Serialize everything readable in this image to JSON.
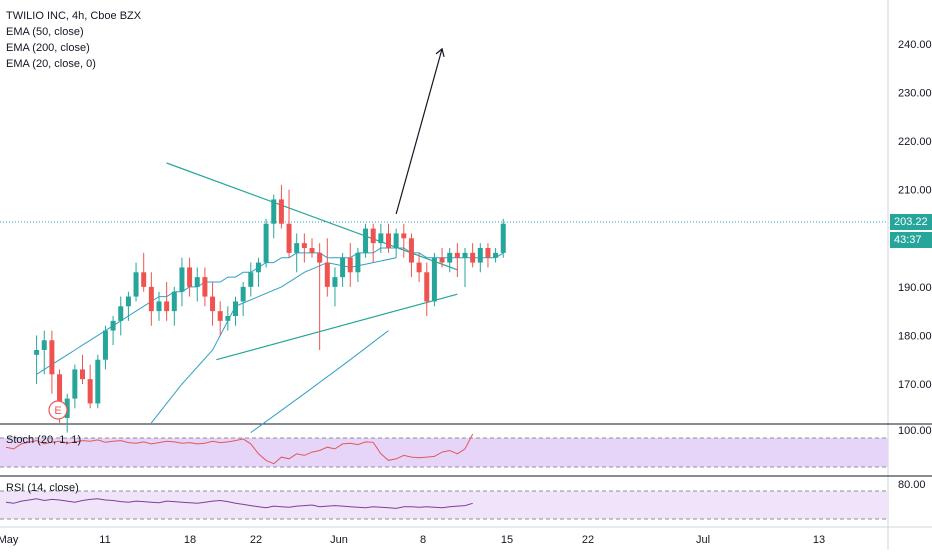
{
  "symbol_title": "TWILIO INC, 4h, Cboe BZX",
  "indicators": {
    "ema50": "EMA (50, close)",
    "ema200": "EMA (200, close)",
    "ema20": "EMA (20, close, 0)"
  },
  "earnings_marker": "E",
  "stoch_label": "Stoch (20, 1, 1)",
  "rsi_label": "RSI (14, close)",
  "price_axis": {
    "ticks": [
      "240.00",
      "230.00",
      "220.00",
      "210.00",
      "190.00",
      "180.00",
      "170.00"
    ],
    "tick_values": [
      240,
      230,
      220,
      210,
      190,
      180,
      170
    ]
  },
  "last_price": "203.22",
  "countdown": "43:37",
  "stoch_axis_tick": "100.00",
  "rsi_axis_tick": "80.00",
  "time_axis": [
    "May",
    "11",
    "18",
    "22",
    "Jun",
    "8",
    "15",
    "22",
    "Jul",
    "13"
  ],
  "colors": {
    "up": "#26a69a",
    "down": "#ef5350",
    "ema": "#2ea0c8",
    "trendline": "#26a69a",
    "stoch": "#e05a5a",
    "rsi": "#7e3f98",
    "band": "#e6d5f8",
    "price_line": "#2ea0c8"
  },
  "chart_data": {
    "type": "candlestick",
    "title": "TWILIO INC, 4h, Cboe BZX",
    "ylim": [
      160,
      250
    ],
    "candles": [
      [
        176,
        180,
        170,
        177
      ],
      [
        177,
        181,
        172,
        179
      ],
      [
        179,
        181,
        168,
        172
      ],
      [
        172,
        173,
        162,
        163
      ],
      [
        163,
        168,
        160,
        167
      ],
      [
        167,
        174,
        165,
        173
      ],
      [
        173,
        176,
        170,
        171
      ],
      [
        171,
        174,
        165,
        166
      ],
      [
        166,
        176,
        165,
        175
      ],
      [
        175,
        182,
        173,
        181
      ],
      [
        181,
        184,
        178,
        183
      ],
      [
        183,
        188,
        180,
        186
      ],
      [
        186,
        189,
        183,
        188
      ],
      [
        188,
        195,
        187,
        193
      ],
      [
        193,
        197,
        189,
        190
      ],
      [
        190,
        193,
        182,
        185
      ],
      [
        185,
        189,
        183,
        187
      ],
      [
        187,
        191,
        183,
        185
      ],
      [
        185,
        190,
        182,
        189
      ],
      [
        189,
        196,
        186,
        194
      ],
      [
        194,
        196,
        188,
        190
      ],
      [
        190,
        194,
        187,
        192
      ],
      [
        192,
        194,
        186,
        188
      ],
      [
        188,
        191,
        182,
        185
      ],
      [
        185,
        187,
        180,
        183
      ],
      [
        183,
        186,
        181,
        184
      ],
      [
        184,
        188,
        182,
        187
      ],
      [
        187,
        191,
        184,
        190
      ],
      [
        190,
        195,
        188,
        193
      ],
      [
        193,
        196,
        190,
        195
      ],
      [
        195,
        204,
        194,
        203
      ],
      [
        203,
        209,
        200,
        208
      ],
      [
        208,
        211,
        202,
        203
      ],
      [
        203,
        210,
        196,
        197
      ],
      [
        197,
        201,
        193,
        199
      ],
      [
        199,
        201,
        195,
        198
      ],
      [
        198,
        200,
        196,
        197
      ],
      [
        197,
        199,
        177,
        195
      ],
      [
        195,
        200,
        188,
        190
      ],
      [
        190,
        194,
        186,
        192
      ],
      [
        192,
        197,
        190,
        196
      ],
      [
        196,
        199,
        190,
        193
      ],
      [
        193,
        198,
        191,
        197
      ],
      [
        197,
        203,
        196,
        202
      ],
      [
        202,
        203,
        195,
        199
      ],
      [
        199,
        203,
        197,
        201
      ],
      [
        201,
        203,
        197,
        198
      ],
      [
        198,
        202,
        196,
        201
      ],
      [
        201,
        203,
        196,
        200
      ],
      [
        200,
        201,
        192,
        195
      ],
      [
        195,
        197,
        191,
        193
      ],
      [
        193,
        195,
        184,
        187
      ],
      [
        187,
        197,
        186,
        196
      ],
      [
        196,
        198,
        194,
        195
      ],
      [
        195,
        198,
        193,
        197
      ],
      [
        197,
        199,
        192,
        196
      ],
      [
        196,
        198,
        190,
        197
      ],
      [
        197,
        199,
        194,
        195
      ],
      [
        195,
        199,
        193,
        198
      ],
      [
        198,
        199,
        194,
        196
      ],
      [
        196,
        198,
        195,
        197
      ],
      [
        197,
        204,
        196,
        203
      ]
    ],
    "trendlines": [
      {
        "from": [
          17,
          215.5
        ],
        "to": [
          55,
          193.5
        ]
      },
      {
        "from": [
          23.5,
          175
        ],
        "to": [
          55,
          188.5
        ]
      }
    ],
    "projection_arrow": {
      "from": [
        47,
        205
      ],
      "to": [
        53,
        239
      ]
    },
    "ema20": [
      172,
      173,
      174,
      175,
      176,
      177,
      178,
      179,
      180,
      181,
      182,
      183,
      184,
      185,
      186,
      187,
      188,
      188,
      189,
      189,
      190,
      190,
      191,
      191,
      191,
      192,
      192,
      193,
      193,
      194,
      195,
      195,
      196,
      196,
      197,
      197,
      197,
      197,
      196,
      196,
      196,
      196,
      197,
      197,
      197,
      198,
      198,
      198,
      198,
      197,
      197,
      196,
      196,
      196,
      196,
      196,
      196,
      196,
      196,
      196,
      196,
      197
    ],
    "ema50": [
      [
        15,
        162
      ],
      [
        19,
        170
      ],
      [
        23,
        177
      ],
      [
        26,
        186
      ],
      [
        29,
        188
      ],
      [
        32,
        190
      ],
      [
        35,
        193
      ],
      [
        38,
        195
      ],
      [
        41,
        194
      ],
      [
        44,
        195
      ],
      [
        47,
        196
      ]
    ],
    "ema200": [
      [
        28,
        160
      ],
      [
        35,
        168
      ],
      [
        41,
        175
      ],
      [
        46,
        181
      ]
    ],
    "stoch_series": [
      60,
      55,
      70,
      75,
      80,
      70,
      75,
      78,
      72,
      76,
      80,
      78,
      82,
      75,
      78,
      80,
      74,
      72,
      76,
      70,
      74,
      78,
      76,
      72,
      74,
      70,
      72,
      78,
      74,
      76,
      80,
      85,
      70,
      40,
      20,
      10,
      30,
      25,
      40,
      35,
      45,
      50,
      60,
      55,
      70,
      72,
      68,
      76,
      75,
      40,
      20,
      25,
      35,
      30,
      28,
      30,
      32,
      45,
      50,
      40,
      55,
      100
    ],
    "rsi_series": [
      60,
      58,
      62,
      64,
      66,
      63,
      65,
      64,
      62,
      60,
      63,
      65,
      66,
      64,
      63,
      61,
      60,
      62,
      61,
      60,
      59,
      62,
      61,
      60,
      59,
      58,
      60,
      62,
      63,
      61,
      58,
      56,
      54,
      52,
      50,
      53,
      52,
      51,
      53,
      54,
      55,
      52,
      53,
      54,
      53,
      52,
      51,
      50,
      52,
      51,
      50,
      49,
      52,
      52,
      51,
      52,
      51,
      50,
      52,
      53,
      54,
      58
    ]
  }
}
